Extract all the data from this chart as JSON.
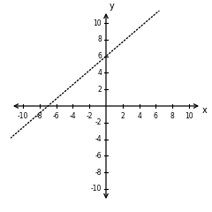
{
  "title": "",
  "xlabel": "x",
  "ylabel": "y",
  "xlim": [
    -11.5,
    11.5
  ],
  "ylim": [
    -11.5,
    11.5
  ],
  "xticks": [
    -10,
    -8,
    -6,
    -4,
    -2,
    2,
    4,
    6,
    8,
    10
  ],
  "yticks": [
    -10,
    -8,
    -6,
    -4,
    -2,
    2,
    4,
    6,
    8,
    10
  ],
  "slope": 0.857142857,
  "intercept": 6.0,
  "x_start": -11.5,
  "x_end": 11.5,
  "line_color": "#000000",
  "line_style": "dotted",
  "line_width": 1.0,
  "bg_color": "#ffffff",
  "axis_color": "#000000",
  "tick_fontsize": 5.5,
  "label_fontsize": 7,
  "figsize": [
    2.4,
    2.4
  ],
  "dpi": 100
}
